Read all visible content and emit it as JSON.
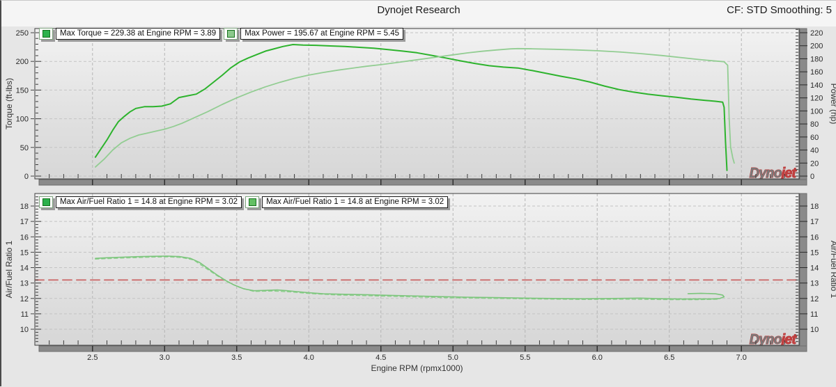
{
  "header": {
    "title": "Dynojet Research",
    "right_info": "CF: STD Smoothing: 5"
  },
  "watermark": {
    "part1": "Dyno",
    "part2": "jet"
  },
  "colors": {
    "torque": "#2db32d",
    "power": "#92cd92",
    "afr": "#7cc57c",
    "afr_ref": "#8fd08f",
    "afr_target": "#cd7272",
    "legend_swatch_1": "#2db14c",
    "legend_swatch_2": "#8bc98b",
    "legend_swatch_3": "#63c063"
  },
  "chart_data": [
    {
      "type": "line",
      "name": "torque-power-chart",
      "xlabel": "Engine RPM (rpmx1000)",
      "x_range": [
        2.1,
        7.4
      ],
      "x_ticks": [
        2.5,
        3.0,
        3.5,
        4.0,
        4.5,
        5.0,
        5.5,
        6.0,
        6.5,
        7.0
      ],
      "x_minor_step": 0.1,
      "show_x_tick_labels": false,
      "grid": true,
      "legend_position": "top-left",
      "left_axis": {
        "label": "Torque (ft-lbs)",
        "range": [
          0,
          250
        ],
        "ticks": [
          0,
          50,
          100,
          150,
          200,
          250
        ],
        "minor_step": 10
      },
      "right_axis": {
        "label": "Power (hp)",
        "range": [
          0,
          220
        ],
        "ticks": [
          0,
          20,
          40,
          60,
          80,
          100,
          120,
          140,
          160,
          180,
          200,
          220
        ],
        "minor_step": 5
      },
      "legend": [
        {
          "label": "Max Torque = 229.38 at Engine RPM = 3.89",
          "color_key": "legend_swatch_1"
        },
        {
          "label": "Max Power = 195.67 at Engine RPM = 5.45",
          "color_key": "legend_swatch_2"
        }
      ],
      "series": [
        {
          "name": "torque",
          "axis": "left",
          "color_key": "torque",
          "width": 2,
          "dash": "",
          "points": [
            [
              2.52,
              33
            ],
            [
              2.56,
              48
            ],
            [
              2.6,
              63
            ],
            [
              2.64,
              80
            ],
            [
              2.68,
              95
            ],
            [
              2.72,
              104
            ],
            [
              2.76,
              112
            ],
            [
              2.8,
              118
            ],
            [
              2.86,
              121
            ],
            [
              2.92,
              121
            ],
            [
              2.98,
              122
            ],
            [
              3.04,
              126
            ],
            [
              3.1,
              137
            ],
            [
              3.16,
              140
            ],
            [
              3.22,
              143
            ],
            [
              3.28,
              152
            ],
            [
              3.34,
              164
            ],
            [
              3.4,
              176
            ],
            [
              3.46,
              189
            ],
            [
              3.52,
              199
            ],
            [
              3.58,
              206
            ],
            [
              3.64,
              212
            ],
            [
              3.7,
              218
            ],
            [
              3.76,
              222
            ],
            [
              3.82,
              226
            ],
            [
              3.89,
              229.4
            ],
            [
              3.96,
              228.5
            ],
            [
              4.05,
              228
            ],
            [
              4.15,
              227
            ],
            [
              4.25,
              226
            ],
            [
              4.35,
              224.5
            ],
            [
              4.45,
              223
            ],
            [
              4.55,
              220.5
            ],
            [
              4.65,
              218
            ],
            [
              4.75,
              215
            ],
            [
              4.85,
              210.5
            ],
            [
              4.95,
              206
            ],
            [
              5.05,
              201
            ],
            [
              5.15,
              196.5
            ],
            [
              5.25,
              192.5
            ],
            [
              5.35,
              190
            ],
            [
              5.45,
              188.5
            ],
            [
              5.55,
              184
            ],
            [
              5.65,
              179
            ],
            [
              5.75,
              174
            ],
            [
              5.85,
              169.5
            ],
            [
              5.95,
              164
            ],
            [
              6.05,
              157
            ],
            [
              6.15,
              151
            ],
            [
              6.25,
              146.5
            ],
            [
              6.35,
              143
            ],
            [
              6.45,
              140
            ],
            [
              6.55,
              137.5
            ],
            [
              6.65,
              134.5
            ],
            [
              6.75,
              132
            ],
            [
              6.82,
              130.5
            ],
            [
              6.87,
              129
            ],
            [
              6.88,
              120
            ],
            [
              6.89,
              60
            ],
            [
              6.9,
              10
            ]
          ]
        },
        {
          "name": "power",
          "axis": "right",
          "color_key": "power",
          "width": 1.8,
          "dash": "",
          "points": [
            [
              2.52,
              14
            ],
            [
              2.58,
              26
            ],
            [
              2.64,
              40
            ],
            [
              2.7,
              51
            ],
            [
              2.76,
              58
            ],
            [
              2.82,
              63
            ],
            [
              2.88,
              66
            ],
            [
              2.94,
              69
            ],
            [
              3.0,
              72
            ],
            [
              3.06,
              76
            ],
            [
              3.12,
              81
            ],
            [
              3.2,
              89
            ],
            [
              3.3,
              99
            ],
            [
              3.4,
              110
            ],
            [
              3.5,
              120
            ],
            [
              3.6,
              129
            ],
            [
              3.7,
              137
            ],
            [
              3.8,
              144
            ],
            [
              3.9,
              150
            ],
            [
              4.0,
              155
            ],
            [
              4.1,
              159
            ],
            [
              4.2,
              162.5
            ],
            [
              4.3,
              165.5
            ],
            [
              4.4,
              168.5
            ],
            [
              4.5,
              171
            ],
            [
              4.6,
              174
            ],
            [
              4.7,
              177
            ],
            [
              4.8,
              180
            ],
            [
              4.9,
              183
            ],
            [
              5.0,
              186
            ],
            [
              5.1,
              189
            ],
            [
              5.2,
              191.5
            ],
            [
              5.3,
              193.5
            ],
            [
              5.4,
              195.2
            ],
            [
              5.45,
              195.67
            ],
            [
              5.55,
              195.3
            ],
            [
              5.7,
              194.6
            ],
            [
              5.85,
              193.6
            ],
            [
              6.0,
              192.3
            ],
            [
              6.15,
              190.5
            ],
            [
              6.3,
              188
            ],
            [
              6.45,
              185
            ],
            [
              6.6,
              181.5
            ],
            [
              6.7,
              179
            ],
            [
              6.8,
              177
            ],
            [
              6.88,
              175.5
            ],
            [
              6.905,
              170
            ],
            [
              6.915,
              90
            ],
            [
              6.925,
              45
            ],
            [
              6.94,
              28
            ],
            [
              6.95,
              20
            ]
          ]
        }
      ]
    },
    {
      "type": "line",
      "name": "air-fuel-ratio-chart",
      "xlabel": "Engine RPM (rpmx1000)",
      "x_range": [
        2.1,
        7.4
      ],
      "x_ticks": [
        2.5,
        3.0,
        3.5,
        4.0,
        4.5,
        5.0,
        5.5,
        6.0,
        6.5,
        7.0
      ],
      "x_minor_step": 0.1,
      "show_x_tick_labels": true,
      "grid": true,
      "legend_position": "top-left",
      "left_axis": {
        "label": "Air/Fuel Ratio 1",
        "range": [
          10,
          18
        ],
        "ticks": [
          10,
          11,
          12,
          13,
          14,
          15,
          16,
          17,
          18
        ],
        "minor_step": 0.2
      },
      "right_axis": {
        "label": "Air/Fuel Ratio 1",
        "range": [
          10,
          18
        ],
        "ticks": [
          10,
          11,
          12,
          13,
          14,
          15,
          16,
          17,
          18
        ],
        "minor_step": 0.2
      },
      "legend": [
        {
          "label": "Max Air/Fuel Ratio 1 = 14.8 at Engine RPM = 3.02",
          "color_key": "legend_swatch_1"
        },
        {
          "label": "Max Air/Fuel Ratio 1 = 14.8 at Engine RPM = 3.02",
          "color_key": "legend_swatch_3"
        }
      ],
      "series": [
        {
          "name": "afr-target-line",
          "axis": "left",
          "color_key": "afr_target",
          "width": 2,
          "dash": "13 7",
          "points": [
            [
              2.1,
              13.2
            ],
            [
              7.4,
              13.2
            ]
          ]
        },
        {
          "name": "afr-reference",
          "axis": "left",
          "color_key": "afr_ref",
          "width": 1.4,
          "dash": "5 4",
          "points": [
            [
              2.52,
              14.55
            ],
            [
              2.7,
              14.62
            ],
            [
              2.9,
              14.68
            ],
            [
              3.02,
              14.7
            ],
            [
              3.12,
              14.65
            ],
            [
              3.2,
              14.5
            ],
            [
              3.28,
              14.0
            ],
            [
              3.36,
              13.5
            ],
            [
              3.44,
              13.05
            ],
            [
              3.52,
              12.72
            ],
            [
              3.62,
              12.45
            ],
            [
              3.75,
              12.48
            ],
            [
              3.88,
              12.42
            ],
            [
              4.0,
              12.32
            ],
            [
              4.2,
              12.22
            ],
            [
              4.4,
              12.18
            ],
            [
              4.6,
              12.13
            ],
            [
              4.8,
              12.08
            ],
            [
              5.0,
              12.04
            ],
            [
              5.3,
              12.0
            ],
            [
              5.6,
              11.96
            ],
            [
              5.9,
              11.93
            ],
            [
              6.2,
              11.95
            ],
            [
              6.5,
              11.92
            ],
            [
              6.7,
              11.92
            ],
            [
              6.85,
              11.95
            ]
          ]
        },
        {
          "name": "afr",
          "axis": "left",
          "color_key": "afr",
          "width": 1.6,
          "dash": "",
          "points": [
            [
              2.52,
              14.6
            ],
            [
              2.6,
              14.64
            ],
            [
              2.7,
              14.68
            ],
            [
              2.8,
              14.71
            ],
            [
              2.9,
              14.73
            ],
            [
              3.02,
              14.75
            ],
            [
              3.1,
              14.72
            ],
            [
              3.18,
              14.6
            ],
            [
              3.24,
              14.35
            ],
            [
              3.3,
              13.95
            ],
            [
              3.36,
              13.55
            ],
            [
              3.42,
              13.18
            ],
            [
              3.48,
              12.88
            ],
            [
              3.55,
              12.62
            ],
            [
              3.62,
              12.5
            ],
            [
              3.7,
              12.52
            ],
            [
              3.78,
              12.55
            ],
            [
              3.85,
              12.5
            ],
            [
              3.92,
              12.44
            ],
            [
              4.0,
              12.37
            ],
            [
              4.1,
              12.3
            ],
            [
              4.25,
              12.27
            ],
            [
              4.4,
              12.24
            ],
            [
              4.55,
              12.2
            ],
            [
              4.7,
              12.17
            ],
            [
              4.9,
              12.12
            ],
            [
              5.1,
              12.08
            ],
            [
              5.3,
              12.05
            ],
            [
              5.5,
              12.02
            ],
            [
              5.7,
              12.0
            ],
            [
              5.9,
              11.98
            ],
            [
              6.1,
              12.0
            ],
            [
              6.3,
              12.02
            ],
            [
              6.45,
              11.98
            ],
            [
              6.6,
              11.96
            ],
            [
              6.72,
              11.97
            ],
            [
              6.8,
              11.97
            ],
            [
              6.85,
              12.0
            ],
            [
              6.88,
              12.1
            ],
            [
              6.87,
              12.22
            ],
            [
              6.82,
              12.3
            ],
            [
              6.72,
              12.33
            ],
            [
              6.63,
              12.31
            ]
          ]
        }
      ]
    }
  ]
}
